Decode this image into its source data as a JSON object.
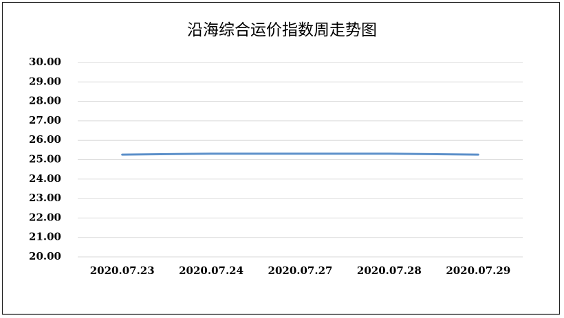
{
  "chart_data": {
    "type": "line",
    "title": "沿海综合运价指数周走势图",
    "categories": [
      "2020.07.23",
      "2020.07.24",
      "2020.07.27",
      "2020.07.28",
      "2020.07.29"
    ],
    "values": [
      25.26,
      25.31,
      25.31,
      25.31,
      25.26
    ],
    "color": "#5b8fc9",
    "ylim": [
      20,
      30
    ],
    "yticks": [
      {
        "value": 20,
        "label": "20.00"
      },
      {
        "value": 21,
        "label": "21.00"
      },
      {
        "value": 22,
        "label": "22.00"
      },
      {
        "value": 23,
        "label": "23.00"
      },
      {
        "value": 24,
        "label": "24.00"
      },
      {
        "value": 25,
        "label": "25.00"
      },
      {
        "value": 26,
        "label": "26.00"
      },
      {
        "value": 27,
        "label": "27.00"
      },
      {
        "value": 28,
        "label": "28.00"
      },
      {
        "value": 29,
        "label": "29.00"
      },
      {
        "value": 30,
        "label": "30.00"
      }
    ],
    "grid": true
  }
}
